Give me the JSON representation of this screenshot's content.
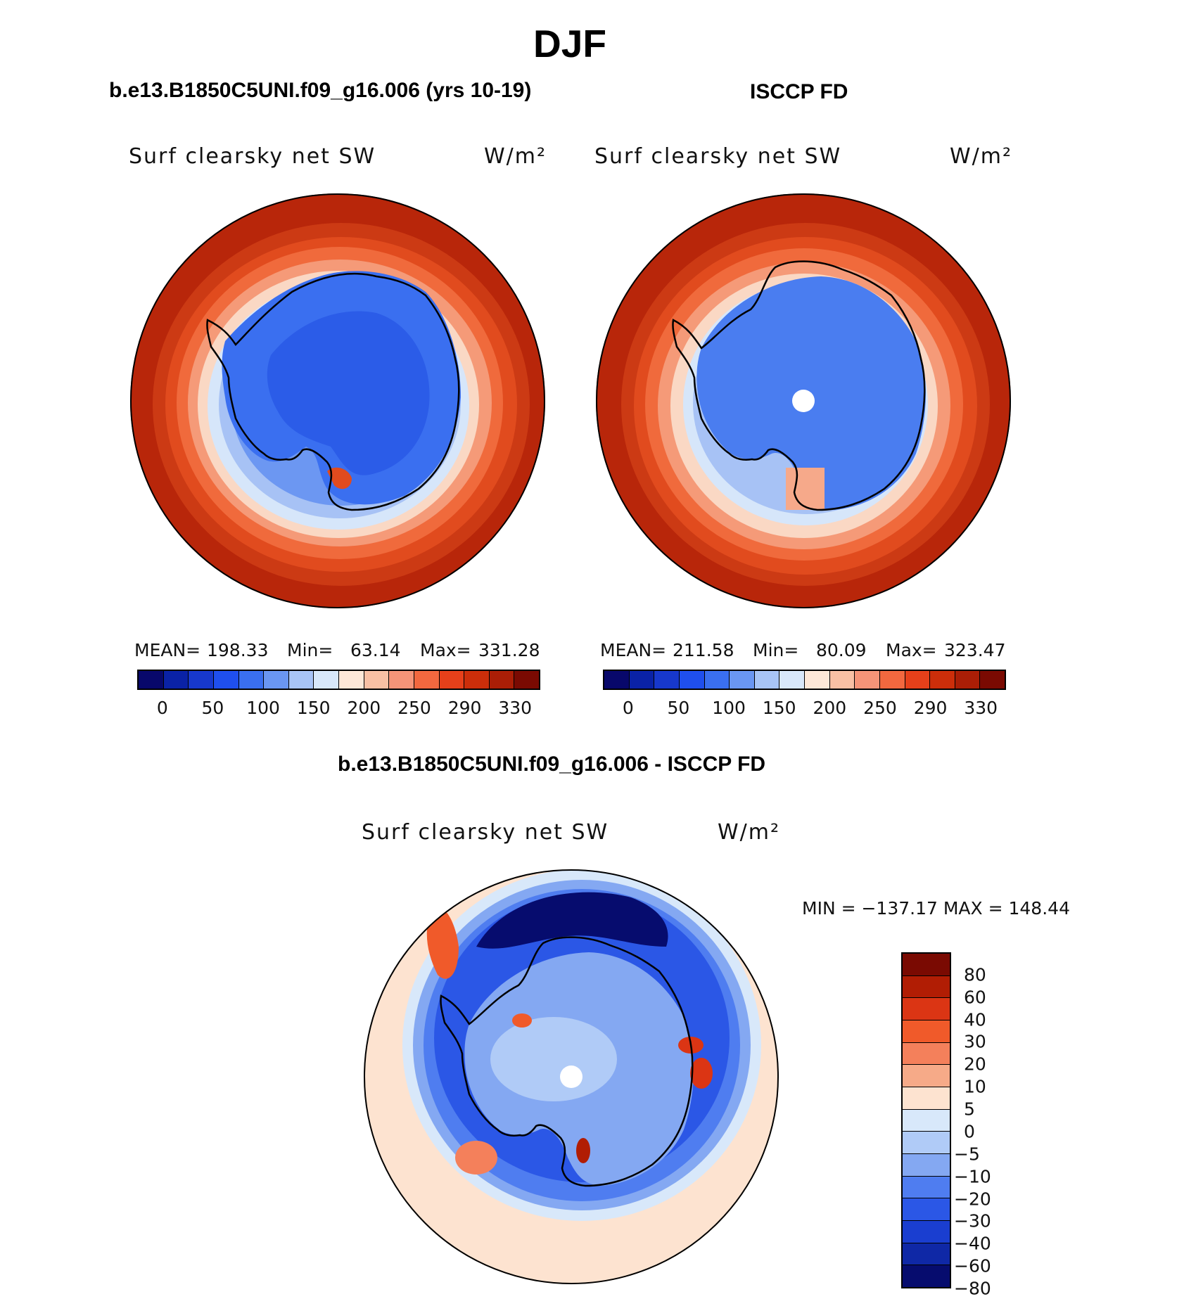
{
  "page": {
    "title": "DJF"
  },
  "palettes": {
    "abs": [
      "#08086b",
      "#0a22a6",
      "#1738cc",
      "#1f4fee",
      "#3a6ff0",
      "#6a96f2",
      "#a8c4f6",
      "#d8e8fa",
      "#fde8d8",
      "#f8c0a4",
      "#f59478",
      "#f2683f",
      "#e6401a",
      "#cc2e0a",
      "#aa1e06",
      "#7a0a02"
    ],
    "diff": [
      "#7a0a02",
      "#b11d04",
      "#db3514",
      "#f05a2a",
      "#f4805b",
      "#f6aa88",
      "#fde3d0",
      "#d8e8fa",
      "#b0cbf7",
      "#84a8f2",
      "#4f7df0",
      "#2b57e6",
      "#1a3ed0",
      "#0f28a6",
      "#060c6e"
    ]
  },
  "chart_data": [
    {
      "type": "heatmap",
      "name": "model",
      "title": "b.e13.B1850C5UNI.f09_g16.006 (yrs 10-19)",
      "variable": "Surf clearsky net SW",
      "units": "W/m²",
      "projection": "south-polar stereographic",
      "stats": {
        "mean_label": "MEAN=",
        "mean": "198.33",
        "min_label": "Min=",
        "min": "63.14",
        "max_label": "Max=",
        "max": "331.28"
      },
      "colorbar_ticks": [
        "0",
        "50",
        "100",
        "150",
        "200",
        "250",
        "290",
        "330"
      ]
    },
    {
      "type": "heatmap",
      "name": "obs",
      "title": "ISCCP FD",
      "variable": "Surf clearsky net SW",
      "units": "W/m²",
      "projection": "south-polar stereographic",
      "stats": {
        "mean_label": "MEAN=",
        "mean": "211.58",
        "min_label": "Min=",
        "min": "80.09",
        "max_label": "Max=",
        "max": "323.47"
      },
      "colorbar_ticks": [
        "0",
        "50",
        "100",
        "150",
        "200",
        "250",
        "290",
        "330"
      ]
    },
    {
      "type": "heatmap",
      "name": "difference",
      "title": "b.e13.B1850C5UNI.f09_g16.006 - ISCCP FD",
      "variable": "Surf clearsky net SW",
      "units": "W/m²",
      "projection": "south-polar stereographic",
      "stats": {
        "text": "MIN = −137.17 MAX = 148.44"
      },
      "colorbar_ticks": [
        "80",
        "60",
        "40",
        "30",
        "20",
        "10",
        "5",
        "0",
        "−5",
        "−10",
        "−20",
        "−30",
        "−40",
        "−60",
        "−80"
      ]
    }
  ]
}
